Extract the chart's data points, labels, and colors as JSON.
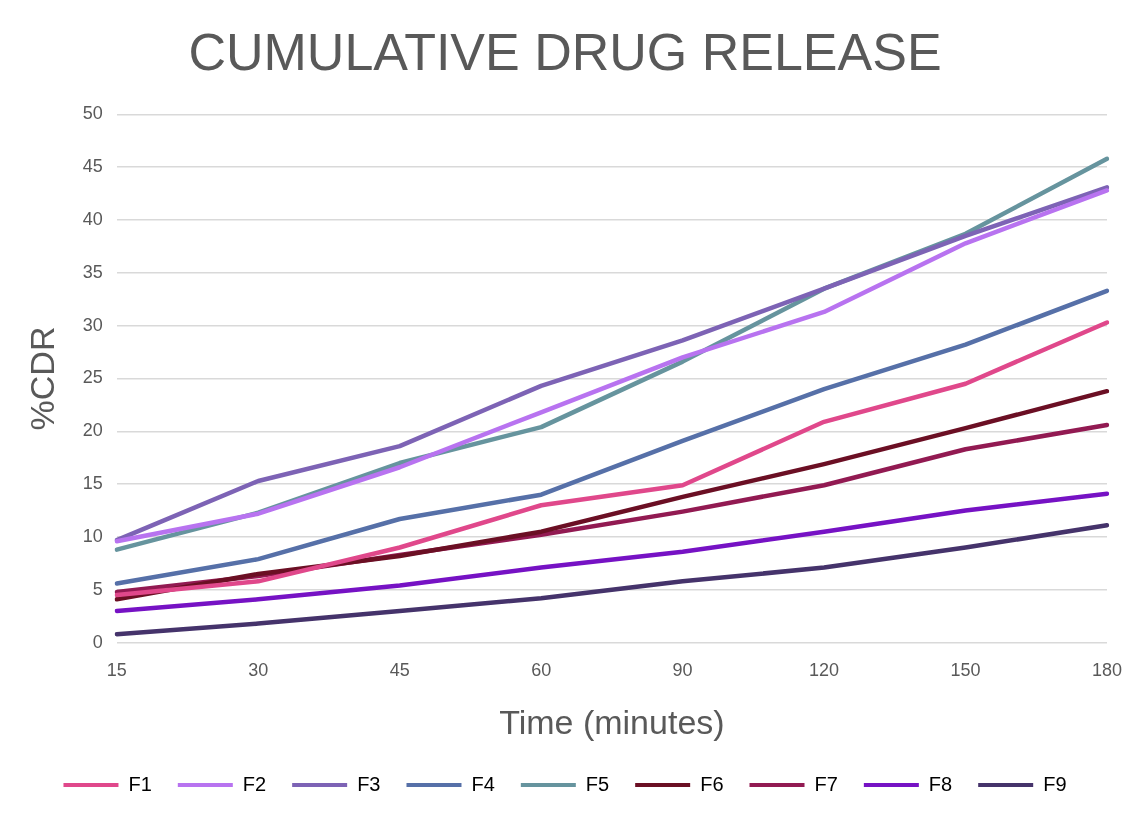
{
  "chart_data": {
    "type": "line",
    "title": "CUMULATIVE DRUG RELEASE",
    "xlabel": "Time (minutes)",
    "ylabel": "%CDR",
    "categories": [
      "15",
      "30",
      "45",
      "60",
      "90",
      "120",
      "150",
      "180"
    ],
    "ylim": [
      0,
      50
    ],
    "yticks": [
      0,
      5,
      10,
      15,
      20,
      25,
      30,
      35,
      40,
      45,
      50
    ],
    "grid": "y",
    "legend": "bottom",
    "marker": "none",
    "line_style": "solid",
    "series": [
      {
        "name": "F1",
        "color": "#e0488b",
        "values": [
          4.5,
          5.8,
          9.0,
          13.0,
          14.9,
          20.9,
          24.5,
          30.3
        ]
      },
      {
        "name": "F2",
        "color": "#b873f0",
        "values": [
          9.6,
          12.2,
          16.6,
          21.8,
          27.0,
          31.3,
          37.8,
          42.8
        ]
      },
      {
        "name": "F3",
        "color": "#7d63b5",
        "values": [
          9.7,
          15.3,
          18.6,
          24.3,
          28.6,
          33.5,
          38.5,
          43.1
        ]
      },
      {
        "name": "F4",
        "color": "#5670a8",
        "values": [
          5.6,
          7.9,
          11.7,
          14.0,
          19.1,
          24.0,
          28.2,
          33.3
        ]
      },
      {
        "name": "F5",
        "color": "#66949e",
        "values": [
          8.8,
          12.3,
          17.0,
          20.4,
          26.6,
          33.5,
          38.7,
          45.8
        ]
      },
      {
        "name": "F6",
        "color": "#6b0f24",
        "values": [
          4.1,
          6.5,
          8.2,
          10.5,
          13.8,
          16.9,
          20.3,
          23.8
        ]
      },
      {
        "name": "F7",
        "color": "#921a52",
        "values": [
          4.8,
          6.3,
          8.3,
          10.2,
          12.4,
          14.9,
          18.3,
          20.6
        ]
      },
      {
        "name": "F8",
        "color": "#7612c4",
        "values": [
          3.0,
          4.1,
          5.4,
          7.1,
          8.6,
          10.5,
          12.5,
          14.1
        ]
      },
      {
        "name": "F9",
        "color": "#45336b",
        "values": [
          0.8,
          1.8,
          3.0,
          4.2,
          5.8,
          7.1,
          9.0,
          11.1
        ]
      }
    ]
  }
}
